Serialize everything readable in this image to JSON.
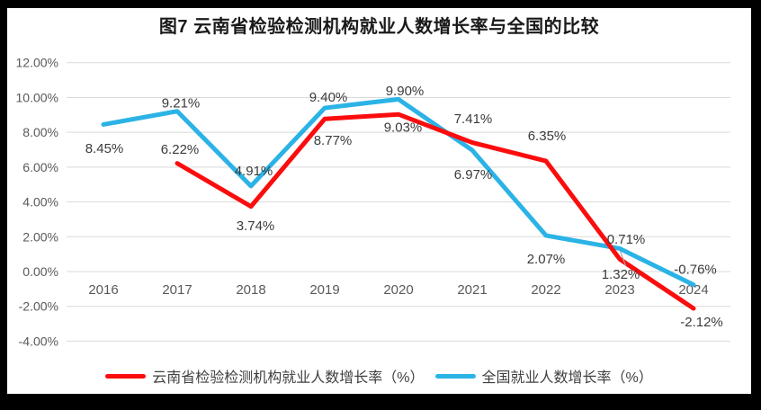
{
  "title": "图7  云南省检验检测机构就业人数增长率与全国的比较",
  "colors": {
    "background": "#000000",
    "chart_bg": "#FFFFFF",
    "grid": "#D9D9D9",
    "tick_text": "#595959",
    "data_label_text": "#3B3B3B",
    "title_text": "#1A1A1A",
    "leader": "#A6A6A6",
    "yunnan_red": "#FB0D0D",
    "national_blue": "#2BB3E6"
  },
  "chart_data": {
    "type": "line",
    "title": "图7  云南省检验检测机构就业人数增长率与全国的比较",
    "categories": [
      "2016",
      "2017",
      "2018",
      "2019",
      "2020",
      "2021",
      "2022",
      "2023",
      "2024"
    ],
    "y_axis": {
      "min": -4,
      "max": 12,
      "step": 2,
      "tick_labels": [
        "12.00%",
        "10.00%",
        "8.00%",
        "6.00%",
        "4.00%",
        "2.00%",
        "0.00%",
        "-2.00%",
        "-4.00%"
      ],
      "grid": true
    },
    "series": [
      {
        "name": "云南省检验检测机构就业人数增长率（%）",
        "color_key": "yunnan_red",
        "values": [
          null,
          6.22,
          3.74,
          8.77,
          9.03,
          7.41,
          6.35,
          0.71,
          -2.12
        ],
        "data_labels": [
          "",
          "6.22%",
          "3.74%",
          "8.77%",
          "9.03%",
          "7.41%",
          "6.35%",
          "0.71%",
          "-2.12%"
        ],
        "label_offsets": [
          null,
          [
            3,
            -15.5
          ],
          [
            5,
            21.5
          ],
          [
            9,
            23.5
          ],
          [
            5,
            14.5
          ],
          [
            1,
            -26.5
          ],
          [
            1,
            -28
          ],
          [
            7,
            -22.5
          ],
          [
            9,
            15
          ]
        ]
      },
      {
        "name": "全国就业人数增长率（%）",
        "color_key": "national_blue",
        "values": [
          8.45,
          9.21,
          4.91,
          9.4,
          9.9,
          6.97,
          2.07,
          1.32,
          -0.76
        ],
        "data_labels": [
          "8.45%",
          "9.21%",
          "4.91%",
          "9.40%",
          "9.90%",
          "6.97%",
          "2.07%",
          "1.32%",
          "-0.76%"
        ],
        "label_offsets": [
          [
            1,
            26.5
          ],
          [
            4,
            -9
          ],
          [
            3,
            -17
          ],
          [
            4,
            -12
          ],
          [
            7,
            -9.5
          ],
          [
            1,
            27
          ],
          [
            0,
            26
          ],
          [
            1,
            28.5
          ],
          [
            2,
            -17
          ]
        ]
      }
    ],
    "legend_position": "bottom",
    "leader_line": {
      "series": "全国就业人数增长率（%）",
      "category": "2023"
    }
  },
  "legend": {
    "items": [
      {
        "label": "云南省检验检测机构就业人数增长率（%）"
      },
      {
        "label": "全国就业人数增长率（%）"
      }
    ]
  }
}
